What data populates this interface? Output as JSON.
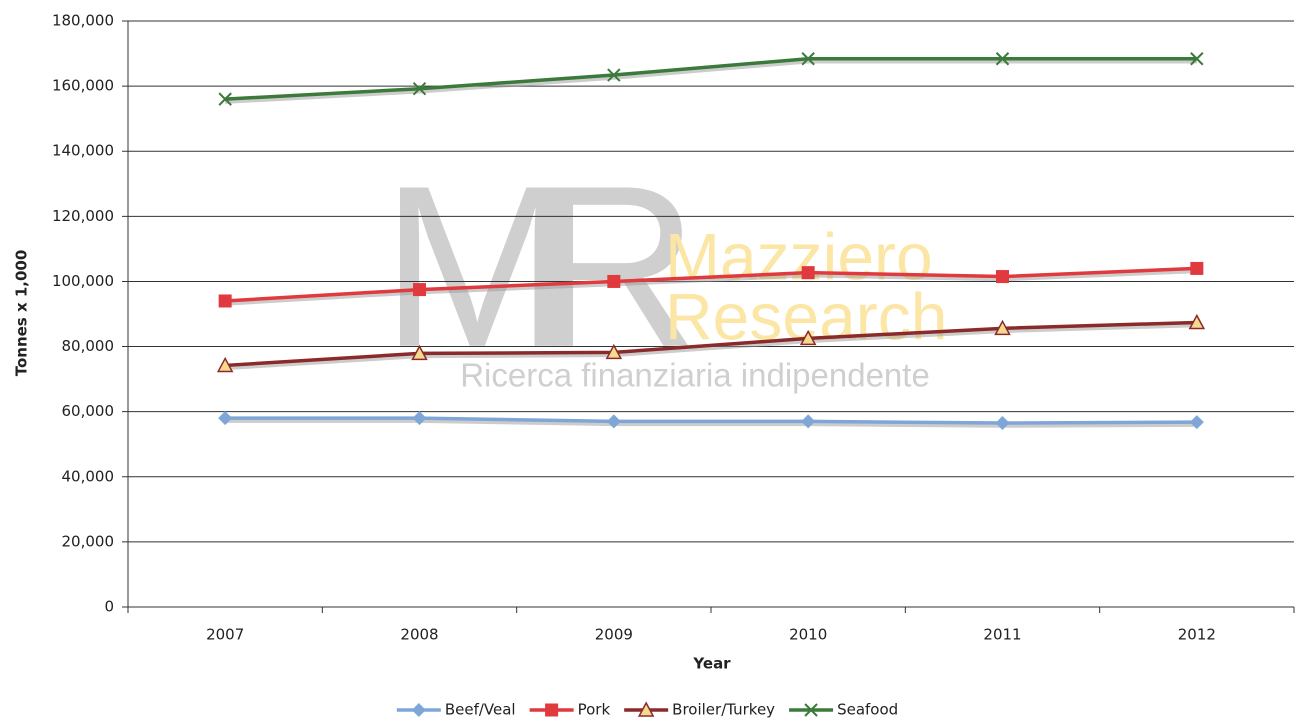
{
  "chart_data": {
    "type": "line",
    "y_label": "Tonnes x 1,000",
    "x_label": "Year",
    "categories": [
      "2007",
      "2008",
      "2009",
      "2010",
      "2011",
      "2012"
    ],
    "series": [
      {
        "name": "Beef/Veal",
        "color": "#7ea7d8",
        "marker": "diamond",
        "values": [
          58000,
          58000,
          57000,
          57000,
          56500,
          56800
        ]
      },
      {
        "name": "Pork",
        "color": "#e0393e",
        "marker": "square",
        "values": [
          94000,
          97500,
          100000,
          102700,
          101500,
          104000
        ]
      },
      {
        "name": "Broiler/Turkey",
        "color": "#8b2a2a",
        "marker": "triangle",
        "marker_fill": "#f5d98f",
        "values": [
          74200,
          77900,
          78200,
          82500,
          85600,
          87400
        ]
      },
      {
        "name": "Seafood",
        "color": "#3c7a3c",
        "marker": "x",
        "values": [
          156000,
          159200,
          163400,
          168400,
          168400,
          168400
        ]
      }
    ],
    "ylim": [
      0,
      180000
    ],
    "yticks": [
      0,
      {
        "value": 20000,
        "label": "20,000"
      },
      {
        "value": 40000,
        "label": "40,000"
      },
      {
        "value": 60000,
        "label": "60,000"
      },
      {
        "value": 80000,
        "label": "80,000"
      },
      {
        "value": 100000,
        "label": "100,000"
      },
      {
        "value": 120000,
        "label": "120,000"
      },
      {
        "value": 140000,
        "label": "140,000"
      },
      {
        "value": 160000,
        "label": "160,000"
      },
      {
        "value": 180000,
        "label": "180,000"
      }
    ],
    "grid": true,
    "legend": "bottom",
    "watermark": {
      "logo": "MR",
      "name_line1": "Mazziero",
      "name_line2": "Research",
      "tagline": "Ricerca finanziaria indipendente"
    }
  }
}
